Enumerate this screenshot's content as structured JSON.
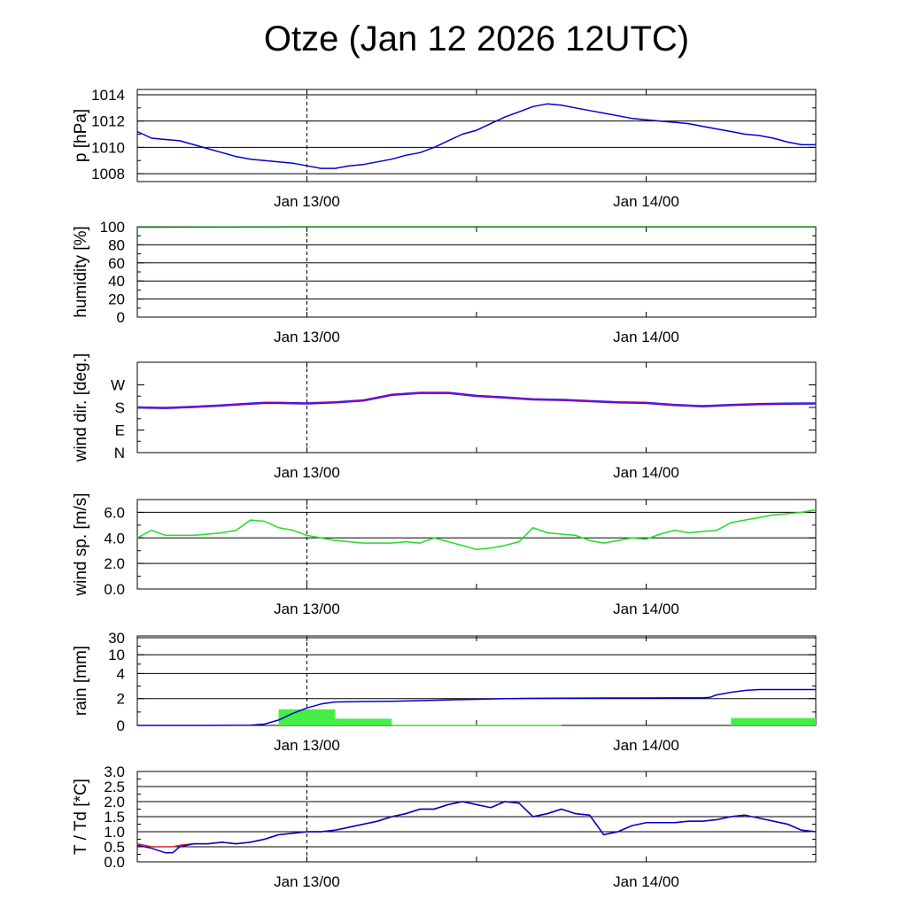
{
  "title": "Otze (Jan 12 2026 12UTC)",
  "x_tick_labels": [
    "Jan 13/00",
    "Jan 14/00"
  ],
  "colors": {
    "pressure": "#0000cc",
    "humidity": "#008800",
    "wind_dir": "#9900cc",
    "wind_dir_shadow": "#0000cc",
    "wind_speed": "#22dd22",
    "rain_accum": "#0000cc",
    "rain_bar": "#44ee44",
    "temperature": "#dd2222",
    "dewpoint": "#0000cc"
  },
  "chart_data": [
    {
      "type": "line",
      "name": "pressure",
      "ylabel": "p [hPa]",
      "ylim": [
        1007.4,
        1014.4
      ],
      "yticks": [
        1008,
        1010,
        1012,
        1014
      ],
      "ytick_labels": [
        "1008",
        "1010",
        "1012",
        "1014"
      ],
      "x_hours": [
        0,
        1,
        2,
        3,
        4,
        5,
        6,
        7,
        8,
        9,
        10,
        11,
        12,
        13,
        14,
        15,
        16,
        17,
        18,
        19,
        20,
        21,
        22,
        23,
        24,
        25,
        26,
        27,
        28,
        29,
        30,
        31,
        32,
        33,
        34,
        35,
        36,
        37,
        38,
        39,
        40,
        41,
        42,
        43,
        44,
        45,
        46,
        47,
        48
      ],
      "values": [
        1011.2,
        1010.7,
        1010.6,
        1010.5,
        1010.2,
        1009.9,
        1009.6,
        1009.3,
        1009.1,
        1009.0,
        1008.9,
        1008.8,
        1008.6,
        1008.4,
        1008.4,
        1008.6,
        1008.7,
        1008.9,
        1009.1,
        1009.4,
        1009.6,
        1010.0,
        1010.5,
        1011.0,
        1011.3,
        1011.8,
        1012.3,
        1012.7,
        1013.1,
        1013.3,
        1013.2,
        1013.0,
        1012.8,
        1012.6,
        1012.4,
        1012.2,
        1012.1,
        1012.0,
        1011.9,
        1011.8,
        1011.6,
        1011.4,
        1011.2,
        1011.0,
        1010.9,
        1010.7,
        1010.4,
        1010.2,
        1010.2
      ]
    },
    {
      "type": "line",
      "name": "humidity",
      "ylabel": "humidity [%]",
      "ylim": [
        0,
        100
      ],
      "yticks": [
        0,
        20,
        40,
        60,
        80,
        100
      ],
      "ytick_labels": [
        "0",
        "20",
        "40",
        "60",
        "80",
        "100"
      ],
      "x_hours": [
        0,
        6,
        12,
        18,
        24,
        30,
        36,
        42,
        48
      ],
      "values": [
        99.5,
        99.8,
        99.9,
        99.9,
        99.9,
        99.9,
        99.9,
        99.9,
        99.9
      ]
    },
    {
      "type": "line",
      "name": "wind_direction",
      "ylabel": "wind dir. [deg.]",
      "ylim": [
        0,
        360
      ],
      "yticks": [
        0,
        90,
        180,
        270
      ],
      "ytick_labels": [
        "N",
        "E",
        "S",
        "W"
      ],
      "x_hours": [
        0,
        2,
        4,
        6,
        8,
        9,
        10,
        12,
        14,
        16,
        18,
        20,
        22,
        23,
        24,
        26,
        28,
        30,
        32,
        34,
        36,
        38,
        40,
        42,
        44,
        46,
        48
      ],
      "values": [
        180,
        178,
        182,
        188,
        195,
        198,
        198,
        196,
        200,
        208,
        230,
        238,
        238,
        232,
        226,
        220,
        212,
        210,
        205,
        200,
        198,
        190,
        185,
        190,
        193,
        195,
        196
      ]
    },
    {
      "type": "line",
      "name": "wind_speed",
      "ylabel": "wind sp. [m/s]",
      "ylim": [
        0,
        7
      ],
      "yticks": [
        0,
        2,
        4,
        6
      ],
      "ytick_labels": [
        "0.0",
        "2.0",
        "4.0",
        "6.0"
      ],
      "x_hours": [
        0,
        1,
        2,
        3,
        4,
        5,
        6,
        7,
        8,
        9,
        10,
        11,
        12,
        13,
        14,
        15,
        16,
        17,
        18,
        19,
        20,
        21,
        22,
        23,
        24,
        25,
        26,
        27,
        28,
        29,
        30,
        31,
        32,
        33,
        34,
        35,
        36,
        37,
        38,
        39,
        40,
        41,
        42,
        43,
        44,
        45,
        46,
        47,
        48
      ],
      "values": [
        4.0,
        4.6,
        4.2,
        4.2,
        4.2,
        4.3,
        4.4,
        4.6,
        5.4,
        5.3,
        4.8,
        4.6,
        4.2,
        4.0,
        3.8,
        3.7,
        3.6,
        3.6,
        3.6,
        3.7,
        3.6,
        4.0,
        3.7,
        3.4,
        3.1,
        3.2,
        3.4,
        3.7,
        4.8,
        4.4,
        4.3,
        4.2,
        3.8,
        3.6,
        3.8,
        4.0,
        3.9,
        4.3,
        4.6,
        4.4,
        4.5,
        4.6,
        5.2,
        5.4,
        5.6,
        5.8,
        5.9,
        6.0,
        6.2
      ]
    },
    {
      "type": "bar",
      "name": "rain",
      "ylabel": "rain [mm]",
      "scale": "piecewise",
      "yticks": [
        0,
        2,
        4,
        10,
        30
      ],
      "ytick_labels": [
        "0",
        "2",
        "4",
        "10",
        "30"
      ],
      "bars": [
        {
          "x0": 10,
          "x1": 14,
          "value": 1.2
        },
        {
          "x0": 14,
          "x1": 18,
          "value": 0.5
        },
        {
          "x0": 18,
          "x1": 30,
          "value": 0.05
        },
        {
          "x0": 42,
          "x1": 48,
          "value": 0.55
        }
      ],
      "accum_x_hours": [
        0,
        5,
        8,
        9,
        10,
        11,
        12,
        13,
        14,
        16,
        18,
        20,
        22,
        24,
        26,
        28,
        30,
        32,
        34,
        36,
        38,
        40,
        40.5,
        41,
        42,
        43,
        44,
        46,
        48
      ],
      "accum_values": [
        0,
        0,
        0.02,
        0.1,
        0.4,
        0.9,
        1.3,
        1.6,
        1.75,
        1.78,
        1.8,
        1.85,
        1.9,
        1.95,
        2.0,
        2.02,
        2.03,
        2.04,
        2.05,
        2.05,
        2.06,
        2.06,
        2.1,
        2.3,
        2.5,
        2.65,
        2.72,
        2.72,
        2.72
      ]
    },
    {
      "type": "line",
      "name": "temperature_dewpoint",
      "ylabel": "T / Td [*C]",
      "ylim": [
        0,
        3
      ],
      "yticks": [
        0,
        0.5,
        1,
        1.5,
        2,
        2.5,
        3
      ],
      "ytick_labels": [
        "0.0",
        "0.5",
        "1.0",
        "1.5",
        "2.0",
        "2.5",
        "3.0"
      ],
      "x_hours": [
        0,
        1,
        2,
        2.5,
        3,
        4,
        5,
        6,
        7,
        8,
        9,
        10,
        11,
        12,
        13,
        14,
        15,
        16,
        17,
        18,
        19,
        20,
        21,
        22,
        23,
        24,
        25,
        26,
        27,
        28,
        29,
        30,
        31,
        32,
        33,
        34,
        35,
        36,
        37,
        38,
        39,
        40,
        41,
        42,
        43,
        44,
        45,
        46,
        47,
        48
      ],
      "series": [
        {
          "name": "temperature",
          "values": [
            0.6,
            0.5,
            0.5,
            0.5,
            0.55,
            0.6,
            0.6,
            0.65,
            0.6,
            0.65,
            0.75,
            0.9,
            0.95,
            1.0,
            1.0,
            1.05,
            1.15,
            1.25,
            1.35,
            1.5,
            1.6,
            1.75,
            1.75,
            1.9,
            2.0,
            1.9,
            1.8,
            2.0,
            1.95,
            1.5,
            1.6,
            1.75,
            1.6,
            1.55,
            0.9,
            1.0,
            1.2,
            1.3,
            1.3,
            1.3,
            1.35,
            1.35,
            1.4,
            1.5,
            1.55,
            1.45,
            1.35,
            1.25,
            1.05,
            1.0
          ]
        },
        {
          "name": "dewpoint",
          "values": [
            0.55,
            0.45,
            0.3,
            0.3,
            0.5,
            0.6,
            0.6,
            0.65,
            0.6,
            0.65,
            0.75,
            0.9,
            0.95,
            1.0,
            1.0,
            1.05,
            1.15,
            1.25,
            1.35,
            1.5,
            1.6,
            1.75,
            1.75,
            1.9,
            2.0,
            1.9,
            1.8,
            2.0,
            1.95,
            1.5,
            1.6,
            1.75,
            1.6,
            1.55,
            0.9,
            1.0,
            1.2,
            1.3,
            1.3,
            1.3,
            1.35,
            1.35,
            1.4,
            1.5,
            1.55,
            1.45,
            1.35,
            1.25,
            1.05,
            1.0
          ]
        }
      ]
    }
  ]
}
